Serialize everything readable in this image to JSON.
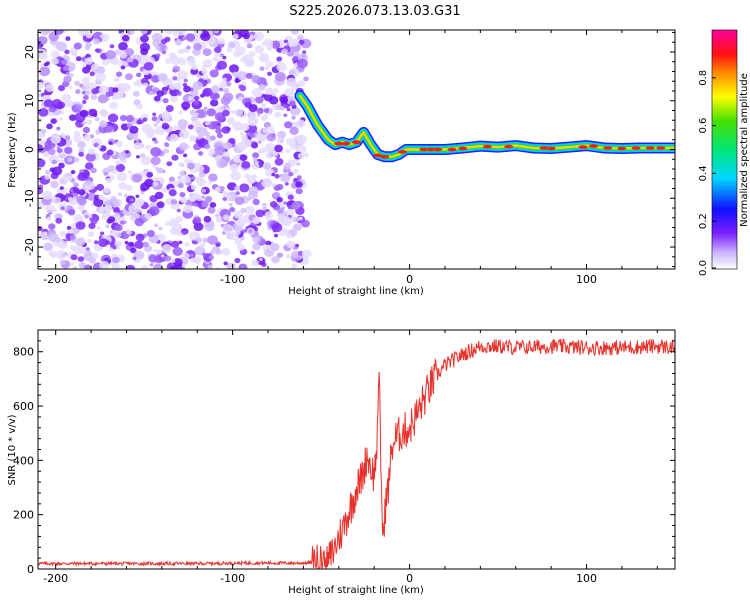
{
  "title": "S225.2026.073.13.03.G31",
  "chart_data": [
    {
      "type": "heatmap",
      "xlabel": "Height of straight line (km)",
      "ylabel": "Frequency (Hz)",
      "xlim": [
        -210,
        150
      ],
      "ylim": [
        -24.5,
        24.5
      ],
      "xticks": [
        -200,
        -100,
        0,
        100
      ],
      "yticks": [
        -20,
        -10,
        0,
        10,
        20
      ],
      "noise_region": {
        "x_start": -210,
        "x_end": -58,
        "description_color": "#8a2be2"
      },
      "ridge": {
        "x": [
          -62,
          -58,
          -52,
          -46,
          -42,
          -38,
          -34,
          -30,
          -26,
          -22,
          -18,
          -14,
          -10,
          -6,
          -2,
          2,
          6,
          10,
          20,
          30,
          40,
          50,
          60,
          70,
          80,
          90,
          100,
          110,
          120,
          130,
          150
        ],
        "y": [
          11,
          9,
          5,
          2,
          1,
          1.5,
          1,
          1.5,
          3.5,
          1,
          -1,
          -1.5,
          -1.5,
          -1,
          0,
          0,
          0,
          0,
          0,
          0.3,
          0.7,
          0.5,
          0.8,
          0.3,
          0.2,
          0.5,
          0.8,
          0.3,
          0.2,
          0.3,
          0.3
        ]
      },
      "colorbar": {
        "label": "Normalized spectral amplitude",
        "range": [
          0,
          1
        ],
        "ticks": [
          "0.0",
          "0.2",
          "0.4",
          "0.6",
          "0.8"
        ],
        "tick_values": [
          0.0,
          0.2,
          0.4,
          0.6,
          0.8
        ]
      }
    },
    {
      "type": "line",
      "xlabel": "Height of straight line (km)",
      "ylabel": "SNR (10 * v/v)",
      "xlim": [
        -210,
        150
      ],
      "ylim": [
        0,
        880
      ],
      "xticks": [
        -200,
        -100,
        0,
        100
      ],
      "yticks": [
        0,
        200,
        400,
        600,
        800
      ],
      "color": "#e8312a",
      "series": [
        {
          "name": "SNR",
          "x": [
            -210,
            -180,
            -150,
            -120,
            -90,
            -60,
            -50,
            -45,
            -42,
            -40,
            -38,
            -35,
            -32,
            -30,
            -28,
            -26,
            -24,
            -22,
            -20,
            -18,
            -17,
            -16,
            -15,
            -14,
            -12,
            -10,
            -8,
            -5,
            0,
            5,
            10,
            15,
            20,
            25,
            30,
            35,
            40,
            50,
            60,
            80,
            100,
            120,
            140,
            150
          ],
          "values": [
            20,
            20,
            20,
            20,
            22,
            22,
            25,
            40,
            80,
            120,
            140,
            200,
            250,
            300,
            320,
            360,
            420,
            380,
            340,
            500,
            740,
            300,
            100,
            220,
            300,
            450,
            480,
            500,
            520,
            580,
            650,
            710,
            750,
            770,
            790,
            805,
            820,
            820,
            815,
            820,
            815,
            815,
            820,
            815
          ]
        }
      ]
    }
  ]
}
